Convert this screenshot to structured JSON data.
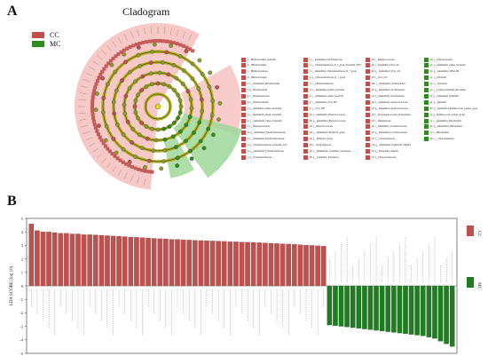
{
  "panels": {
    "a": "A",
    "b": "B"
  },
  "cladogram": {
    "title": "Cladogram",
    "legend": [
      {
        "label": "CC",
        "color": "#c0504d"
      },
      {
        "label": "MC",
        "color": "#2e8b1e"
      }
    ]
  },
  "taxa_legend": [
    {
      "g": "CC",
      "t": "a: _Bifidobacterium_pullorum"
    },
    {
      "g": "CC",
      "t": "b: _Bifidobacterium"
    },
    {
      "g": "CC",
      "t": "c: _Bifidobacteriaceae"
    },
    {
      "g": "CC",
      "t": "d: _Bifidobacteriales"
    },
    {
      "g": "CC",
      "t": "e: s__unidentified_Brevibacterium"
    },
    {
      "g": "CC",
      "t": "f: g__Brevibacterium"
    },
    {
      "g": "CC",
      "t": "g: f__Brevibacteriaceae"
    },
    {
      "g": "CC",
      "t": "h: g__Bifidobacterium"
    },
    {
      "g": "CC",
      "t": "i: g__unidentified_rumen_bacterium"
    },
    {
      "g": "CC",
      "t": "j: s__unidentified_rumen_bacterium"
    },
    {
      "g": "CC",
      "t": "k: g__unidentified_rumen_bacterium"
    },
    {
      "g": "CC",
      "t": "l: s__Ventriosporobacter"
    },
    {
      "g": "CC",
      "t": "m: g__unidentified_Desulfovibrionaceae"
    },
    {
      "g": "CC",
      "t": "n: s__unidentified_Desulfovibrionaceae"
    },
    {
      "g": "CC",
      "t": "o: g__Erysipelotrichaceae_bacterium_sc2?"
    },
    {
      "g": "CC",
      "t": "p: g__unidentified_Erysipelotrichaceae"
    },
    {
      "g": "CC",
      "t": "q: g__Erysipelotrichaceae"
    },
    {
      "g": "CC",
      "t": "r: s__unidentified_Oscillospiraceae"
    },
    {
      "g": "CC",
      "t": "s: s__Christensenellaceae_R_7_group_bacterium_YE57"
    },
    {
      "g": "CC",
      "t": "t: s__unidentified_Christensenellaceae_R_7_group"
    },
    {
      "g": "CC",
      "t": "u: g__Christensenellaceae_R_7_group"
    },
    {
      "g": "CC",
      "t": "v: f__Christensenellaceae"
    },
    {
      "g": "CC",
      "t": "w: s__unidentified_rumen_bacterium"
    },
    {
      "g": "CC",
      "t": "x: s__unidentified_rumen_bacterium"
    },
    {
      "g": "CC",
      "t": "y: s__unidentified_UCG_005"
    },
    {
      "g": "CC",
      "t": "z: g__UCG_005"
    },
    {
      "g": "CC",
      "t": "a0: s__unidentified_Butyricicoccaceae"
    },
    {
      "g": "CC",
      "t": "b0: g__unidentified_Butyricicoccaceae"
    },
    {
      "g": "CC",
      "t": "c0: f__Butyricicoccaceae"
    },
    {
      "g": "CC",
      "t": "d0: s__unidentified_NK4A214_group"
    },
    {
      "g": "CC",
      "t": "e0: g__NK4A214_group"
    },
    {
      "g": "CC",
      "t": "f0: f__Oscillospiraceae"
    },
    {
      "g": "CC",
      "t": "g0: s__unidentified_Candidatus_Soleaferrea"
    },
    {
      "g": "CC",
      "t": "h0: g__Candidatus_Soleaferrea"
    },
    {
      "g": "CC",
      "t": "i0: f__Ruminococcaceae"
    },
    {
      "g": "CC",
      "t": "j0: s__unidentified_UCG_010"
    },
    {
      "g": "CC",
      "t": "k0: g__unidentified_UCG_010"
    },
    {
      "g": "CC",
      "t": "l0: f__UCG_010"
    },
    {
      "g": "CC",
      "t": "m0: s__unidentified_Oscillospirales"
    },
    {
      "g": "CC",
      "t": "n0: g__unidentified_Oscillospirales"
    },
    {
      "g": "CC",
      "t": "o0: f__unidentified_Oscillospirales"
    },
    {
      "g": "CC",
      "t": "p0: s__unidentified_Anaerovoracaceae"
    },
    {
      "g": "CC",
      "t": "q0: g__unidentified_Anaerovoracaceae"
    },
    {
      "g": "CC",
      "t": "r0: f__Peptostreptococcales_Tissierellales"
    },
    {
      "g": "CC",
      "t": "s0: f__Rikenellaceae"
    },
    {
      "g": "CC",
      "t": "t0: s__unidentified_Coriobacteriaceae"
    },
    {
      "g": "CC",
      "t": "u0: g__unidentified_Coriobacteriaceae"
    },
    {
      "g": "CC",
      "t": "v0: f__Coriobacteriaceae"
    },
    {
      "g": "CC",
      "t": "w0: g__unidentified_Escherichia_Shigella"
    },
    {
      "g": "CC",
      "t": "x0: g__Escherichia_Shigella"
    },
    {
      "g": "CC",
      "t": "y0: f__Enterobacteriaceae"
    },
    {
      "g": "MC",
      "t": "z0: s__Enterobacterales"
    },
    {
      "g": "MC",
      "t": "a1: s__unidentified_rumen_bacterium"
    },
    {
      "g": "MC",
      "t": "b1: g__unidentified_UBA1260"
    },
    {
      "g": "MC",
      "t": "c1: f__UBA1260"
    },
    {
      "g": "MC",
      "t": "d1: o__Tyzzerella"
    },
    {
      "g": "MC",
      "t": "e1: s__Lachnoclostridium_phocaeense"
    },
    {
      "g": "MC",
      "t": "f1: g__unidentified_bullianum"
    },
    {
      "g": "MC",
      "t": "g1: g__bullianum"
    },
    {
      "g": "MC",
      "t": "h1: g__unidentified_Ruminococcus_torques_group"
    },
    {
      "g": "MC",
      "t": "i1: g__Ruminococcus_torques_group"
    },
    {
      "g": "MC",
      "t": "j1: s__unidentified_Mitochondria"
    },
    {
      "g": "MC",
      "t": "k1: g__unidentified_Mitochondria"
    },
    {
      "g": "MC",
      "t": "l1: f__Mitochondria"
    },
    {
      "g": "MC",
      "t": "m1: o__Chloroplastidales"
    }
  ],
  "chart_data": {
    "type": "bar",
    "ylabel": "LDA SCORE (log 10)",
    "ylim": [
      -5,
      5
    ],
    "series": [
      {
        "name": "CC",
        "color": "#c0504d",
        "values": [
          4.6,
          4.1,
          4.0,
          4.0,
          3.95,
          3.9,
          3.9,
          3.85,
          3.85,
          3.8,
          3.8,
          3.78,
          3.75,
          3.72,
          3.7,
          3.68,
          3.65,
          3.62,
          3.6,
          3.58,
          3.55,
          3.52,
          3.5,
          3.48,
          3.45,
          3.45,
          3.42,
          3.4,
          3.38,
          3.36,
          3.35,
          3.33,
          3.32,
          3.3,
          3.28,
          3.27,
          3.25,
          3.24,
          3.22,
          3.2,
          3.18,
          3.16,
          3.14,
          3.12,
          3.1,
          3.08,
          3.05,
          3.02,
          3.0,
          2.98,
          2.95
        ]
      },
      {
        "name": "MC",
        "color": "#1e7d1e",
        "values": [
          -2.9,
          -2.95,
          -3.0,
          -3.05,
          -3.1,
          -3.15,
          -3.2,
          -3.25,
          -3.3,
          -3.35,
          -3.4,
          -3.45,
          -3.5,
          -3.55,
          -3.6,
          -3.65,
          -3.7,
          -3.8,
          -3.9,
          -4.1,
          -4.3,
          -4.5
        ]
      }
    ],
    "legend_position": "right"
  }
}
